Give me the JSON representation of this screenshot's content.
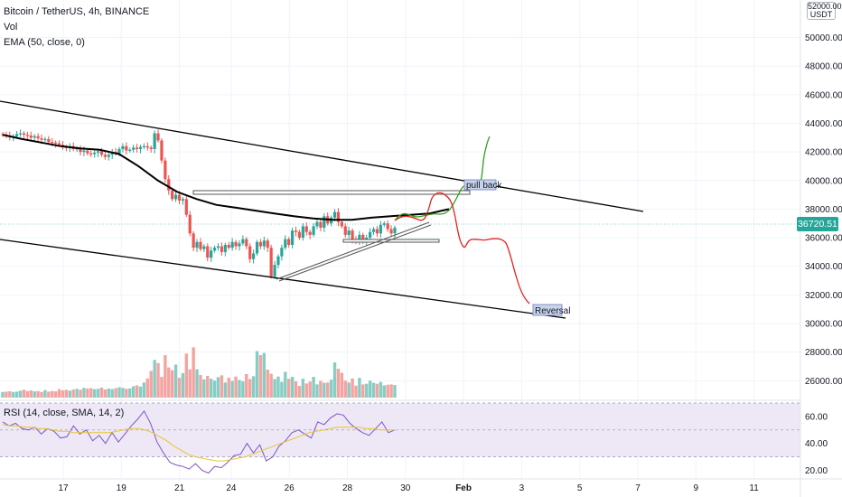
{
  "legend": {
    "symbol": "Bitcoin / TetherUS, 4h, BINANCE",
    "vol": "Vol",
    "ema": "EMA (50, close, 0)",
    "rsi": "RSI (14, close, SMA, 14, 2)"
  },
  "currency": [
    "52000.00",
    "USDT"
  ],
  "last_price": "36720.51",
  "colors": {
    "up": "#26a69a",
    "down": "#ef5350",
    "vol_up": "#86cdc4",
    "vol_down": "#f4a3a1",
    "ema": "#000000",
    "rsi": "#7e57c2",
    "rsi_ma": "#e6c72e",
    "bull_path": "#2e9e1e",
    "bear_path": "#e02424",
    "rsi_band": "#ede7f6"
  },
  "annotations": {
    "pull_back": "pull back",
    "reversal": "Reversal"
  },
  "chart_data": [
    {
      "type": "candlestick",
      "title": "Bitcoin / TetherUS, 4h, BINANCE",
      "y_ticks": [
        "50000.00",
        "48000.00",
        "46000.00",
        "44000.00",
        "42000.00",
        "40000.00",
        "38000.00",
        "36000.00",
        "34000.00",
        "32000.00",
        "30000.00",
        "28000.00",
        "26000.00"
      ],
      "x_ticks": [
        "17",
        "19",
        "21",
        "24",
        "26",
        "28",
        "30",
        "Feb",
        "3",
        "5",
        "7",
        "9",
        "11"
      ],
      "ylim": [
        24500,
        52500
      ],
      "closes": [
        43200,
        43150,
        43050,
        43100,
        43250,
        43300,
        43200,
        43150,
        43000,
        43100,
        42950,
        42850,
        42900,
        42700,
        42650,
        42600,
        42500,
        42350,
        42300,
        42400,
        42200,
        42250,
        42000,
        42100,
        41900,
        41850,
        41950,
        42050,
        41800,
        41650,
        41800,
        42000,
        41900,
        42200,
        42400,
        42100,
        42150,
        42300,
        42200,
        42350,
        42400,
        42300,
        42200,
        43300,
        42800,
        41400,
        40100,
        39300,
        38700,
        39000,
        38600,
        38700,
        37600,
        36300,
        35300,
        35700,
        35200,
        35400,
        34600,
        35100,
        35300,
        35400,
        35000,
        35500,
        35300,
        35700,
        35400,
        35600,
        35900,
        35400,
        34500,
        34900,
        35700,
        35400,
        35800,
        35300,
        33300,
        34100,
        34700,
        35300,
        35900,
        35500,
        36500,
        36400,
        36000,
        36800,
        36400,
        36200,
        36800,
        37100,
        36700,
        37500,
        37000,
        37400,
        37800,
        37100,
        36800,
        36200,
        36500,
        35900,
        35700,
        36200,
        35800,
        36000,
        36400,
        36600,
        36300,
        36900,
        37000,
        36600,
        36300,
        36700
      ],
      "ema50": [
        43200,
        42900,
        42650,
        42400,
        42250,
        42150,
        41850,
        41000,
        40000,
        39200,
        38700,
        38300,
        38100,
        37900,
        37700,
        37500,
        37350,
        37250,
        37250,
        37400,
        37500,
        37600,
        37700,
        38000
      ],
      "volume_ymax": 34500,
      "volume": [
        1800,
        1900,
        2000,
        1800,
        1900,
        2200,
        2500,
        2100,
        2300,
        2000,
        2100,
        1800,
        2400,
        1900,
        2100,
        2000,
        2700,
        2300,
        2500,
        2200,
        2600,
        2800,
        2500,
        3100,
        2900,
        3000,
        2700,
        2800,
        3200,
        2600,
        2900,
        2700,
        3000,
        3300,
        3100,
        2800,
        2900,
        3600,
        3900,
        3500,
        4800,
        6100,
        8500,
        12000,
        11000,
        6600,
        13500,
        9600,
        8700,
        10500,
        6300,
        7800,
        14000,
        9000,
        16000,
        9000,
        7200,
        5800,
        6900,
        6000,
        5400,
        6500,
        7100,
        4800,
        6300,
        5300,
        6700,
        5600,
        5200,
        7500,
        5900,
        6800,
        14800,
        13500,
        14200,
        8900,
        7600,
        5900,
        6700,
        5000,
        8200,
        6000,
        6600,
        5200,
        3700,
        6000,
        4500,
        5100,
        6600,
        4200,
        5300,
        4700,
        4800,
        5700,
        11200,
        9200,
        7900,
        5400,
        4800,
        6100,
        3800,
        6300,
        4200,
        4400,
        5400,
        4700,
        4400,
        5000,
        3900,
        4100,
        4200,
        4000
      ],
      "rsi": {
        "ylim": [
          15,
          70
        ],
        "y_ticks": [
          "60.00",
          "40.00",
          "20.00"
        ],
        "bands": [
          30,
          70
        ],
        "values": [
          56,
          53,
          55,
          51,
          50,
          52,
          47,
          51,
          49,
          44,
          45,
          53,
          47,
          50,
          42,
          46,
          40,
          48,
          41,
          47,
          53,
          58,
          64,
          55,
          41,
          33,
          26,
          24,
          23,
          21,
          25,
          20,
          18,
          23,
          22,
          26,
          31,
          32,
          40,
          33,
          39,
          27,
          30,
          38,
          42,
          48,
          50,
          47,
          44,
          56,
          54,
          59,
          62,
          61,
          55,
          51,
          48,
          46,
          51,
          56,
          48,
          50
        ],
        "ma": [
          54,
          53,
          53,
          52,
          52,
          51,
          51,
          50,
          49,
          49,
          48,
          48,
          48,
          48,
          48,
          48,
          49,
          50,
          51,
          51,
          50,
          48,
          45,
          42,
          38,
          35,
          32,
          30,
          29,
          28,
          27,
          27,
          28,
          29,
          30,
          32,
          34,
          36,
          38,
          40,
          42,
          44,
          46,
          48,
          49,
          50,
          51,
          52,
          52,
          52,
          52,
          51,
          51,
          50,
          50,
          50
        ]
      }
    }
  ]
}
